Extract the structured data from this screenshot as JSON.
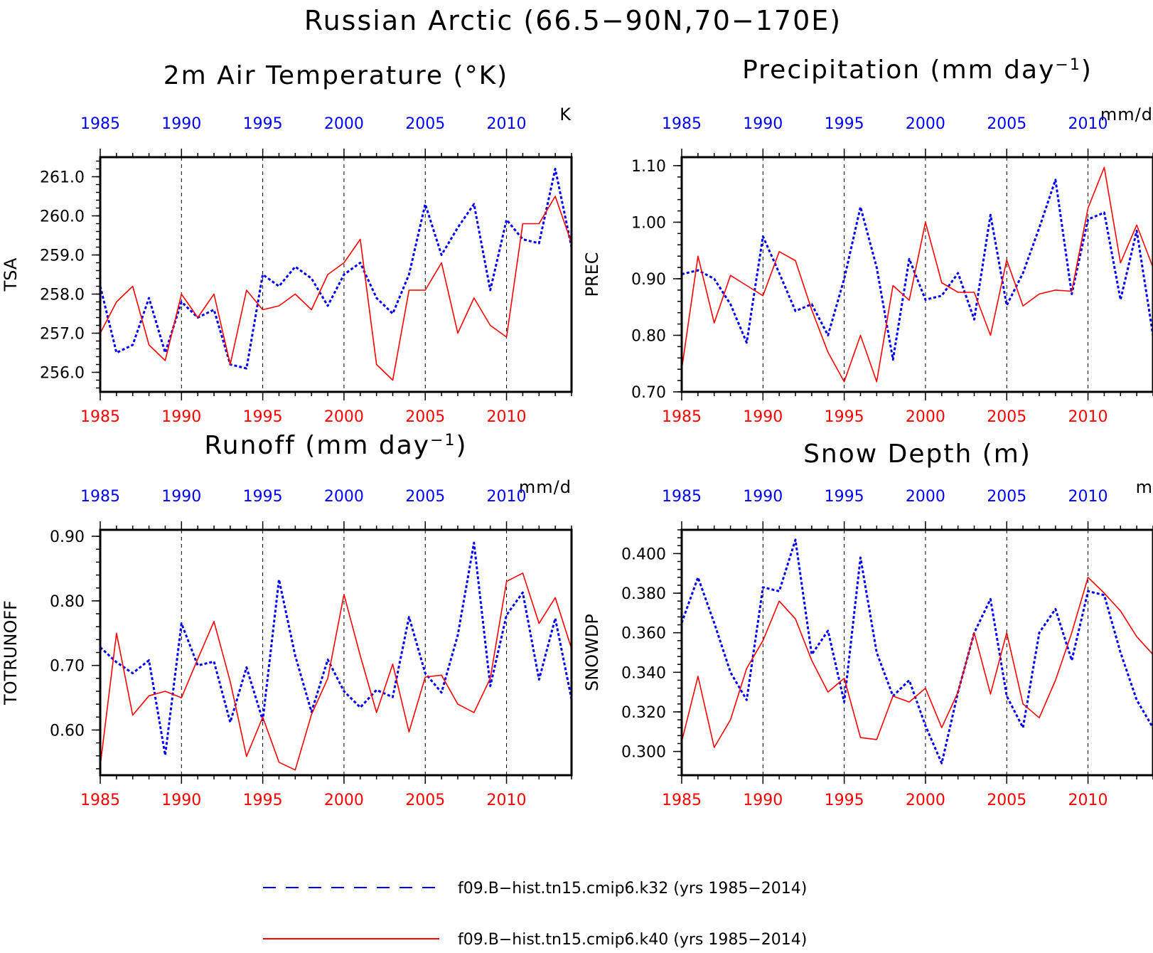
{
  "page": {
    "title": "Russian Arctic (66.5−90N,70−170E)",
    "colors": {
      "k32": "#0000ff",
      "k40": "#ff0000",
      "axis": "#000000"
    }
  },
  "legend": {
    "items": [
      {
        "label": "f09.B−hist.tn15.cmip6.k32 (yrs 1985−2014)",
        "style": "dashed",
        "color": "#0000ff"
      },
      {
        "label": "f09.B−hist.tn15.cmip6.k40 (yrs 1985−2014)",
        "style": "solid",
        "color": "#ff0000"
      }
    ]
  },
  "chart_data": [
    {
      "type": "line",
      "title": "2m Air Temperature (°K)",
      "title_main": "2m Air Temperature (°K)",
      "title_sup": "",
      "title_tail": "",
      "ylabel": "TSA",
      "units": "K",
      "xlim": [
        1985,
        2014
      ],
      "ylim": [
        255.5,
        261.5
      ],
      "yticks": [
        256,
        257,
        258,
        259,
        260,
        261
      ],
      "ytick_labels": [
        "256.0",
        "257.0",
        "258.0",
        "259.0",
        "260.0",
        "261.0"
      ],
      "y_minor": 0.2,
      "xticks": [
        1985,
        1990,
        1995,
        2000,
        2005,
        2010
      ],
      "xtick_labels": [
        "1985",
        "1990",
        "1995",
        "2000",
        "2005",
        "2010"
      ],
      "grid_x": [
        1990,
        1995,
        2000,
        2005,
        2010
      ],
      "x": [
        1985,
        1986,
        1987,
        1988,
        1989,
        1990,
        1991,
        1992,
        1993,
        1994,
        1995,
        1996,
        1997,
        1998,
        1999,
        2000,
        2001,
        2002,
        2003,
        2004,
        2005,
        2006,
        2007,
        2008,
        2009,
        2010,
        2011,
        2012,
        2013,
        2014
      ],
      "series": [
        {
          "name": "f09.B−hist.tn15.cmip6.k32",
          "style": "dashed",
          "color": "#0000ff",
          "values": [
            258.2,
            256.5,
            256.7,
            257.9,
            256.5,
            257.8,
            257.4,
            257.6,
            256.2,
            256.1,
            258.5,
            258.2,
            258.7,
            258.4,
            257.7,
            258.5,
            258.8,
            257.9,
            257.5,
            258.5,
            260.3,
            259.0,
            259.7,
            260.3,
            258.1,
            259.9,
            259.4,
            259.3,
            261.2,
            259.2
          ]
        },
        {
          "name": "f09.B−hist.tn15.cmip6.k40",
          "style": "solid",
          "color": "#ff0000",
          "values": [
            257.0,
            257.8,
            258.2,
            256.7,
            256.3,
            258.0,
            257.4,
            258.0,
            256.2,
            258.1,
            257.6,
            257.7,
            258.0,
            257.6,
            258.5,
            258.8,
            259.4,
            256.2,
            255.8,
            258.1,
            258.1,
            258.8,
            257.0,
            257.9,
            257.2,
            256.9,
            259.8,
            259.8,
            260.5,
            259.3
          ]
        }
      ]
    },
    {
      "type": "line",
      "title": "Precipitation (mm day⁻¹)",
      "title_main": "Precipitation (mm day",
      "title_sup": "−1",
      "title_tail": ")",
      "ylabel": "PREC",
      "units": "mm/d",
      "xlim": [
        1985,
        2014
      ],
      "ylim": [
        0.7,
        1.115
      ],
      "yticks": [
        0.7,
        0.8,
        0.9,
        1.0,
        1.1
      ],
      "ytick_labels": [
        "0.70",
        "0.80",
        "0.90",
        "1.00",
        "1.10"
      ],
      "y_minor": 0.02,
      "xticks": [
        1985,
        1990,
        1995,
        2000,
        2005,
        2010
      ],
      "xtick_labels": [
        "1985",
        "1990",
        "1995",
        "2000",
        "2005",
        "2010"
      ],
      "grid_x": [
        1990,
        1995,
        2000,
        2005,
        2010
      ],
      "x": [
        1985,
        1986,
        1987,
        1988,
        1989,
        1990,
        1991,
        1992,
        1993,
        1994,
        1995,
        1996,
        1997,
        1998,
        1999,
        2000,
        2001,
        2002,
        2003,
        2004,
        2005,
        2006,
        2007,
        2008,
        2009,
        2010,
        2011,
        2012,
        2013,
        2014
      ],
      "series": [
        {
          "name": "f09.B−hist.tn15.cmip6.k32",
          "style": "dashed",
          "color": "#0000ff",
          "values": [
            0.908,
            0.915,
            0.9,
            0.855,
            0.787,
            0.975,
            0.91,
            0.843,
            0.855,
            0.8,
            0.9,
            1.027,
            0.92,
            0.757,
            0.935,
            0.863,
            0.87,
            0.91,
            0.828,
            1.013,
            0.853,
            0.91,
            0.99,
            1.075,
            0.873,
            1.005,
            1.017,
            0.863,
            0.985,
            0.8
          ]
        },
        {
          "name": "f09.B−hist.tn15.cmip6.k40",
          "style": "solid",
          "color": "#ff0000",
          "values": [
            0.74,
            0.94,
            0.822,
            0.906,
            0.888,
            0.87,
            0.948,
            0.932,
            0.845,
            0.77,
            0.718,
            0.8,
            0.718,
            0.888,
            0.862,
            1.0,
            0.893,
            0.876,
            0.876,
            0.8,
            0.933,
            0.852,
            0.873,
            0.88,
            0.878,
            1.025,
            1.097,
            0.928,
            0.995,
            0.92
          ]
        }
      ]
    },
    {
      "type": "line",
      "title": "Runoff (mm day⁻¹)",
      "title_main": "Runoff (mm day",
      "title_sup": "−1",
      "title_tail": ")",
      "ylabel": "TOTRUNOFF",
      "units": "mm/d",
      "xlim": [
        1985,
        2014
      ],
      "ylim": [
        0.53,
        0.91
      ],
      "yticks": [
        0.6,
        0.7,
        0.8,
        0.9
      ],
      "ytick_labels": [
        "0.60",
        "0.70",
        "0.80",
        "0.90"
      ],
      "y_minor": 0.02,
      "xticks": [
        1985,
        1990,
        1995,
        2000,
        2005,
        2010
      ],
      "xtick_labels": [
        "1985",
        "1990",
        "1995",
        "2000",
        "2005",
        "2010"
      ],
      "grid_x": [
        1990,
        1995,
        2000,
        2005,
        2010
      ],
      "x": [
        1985,
        1986,
        1987,
        1988,
        1989,
        1990,
        1991,
        1992,
        1993,
        1994,
        1995,
        1996,
        1997,
        1998,
        1999,
        2000,
        2001,
        2002,
        2003,
        2004,
        2005,
        2006,
        2007,
        2008,
        2009,
        2010,
        2011,
        2012,
        2013,
        2014
      ],
      "series": [
        {
          "name": "f09.B−hist.tn15.cmip6.k32",
          "style": "dashed",
          "color": "#0000ff",
          "values": [
            0.728,
            0.705,
            0.688,
            0.708,
            0.561,
            0.765,
            0.7,
            0.706,
            0.612,
            0.697,
            0.615,
            0.833,
            0.715,
            0.628,
            0.709,
            0.66,
            0.635,
            0.662,
            0.651,
            0.775,
            0.688,
            0.658,
            0.747,
            0.89,
            0.668,
            0.778,
            0.813,
            0.678,
            0.773,
            0.648
          ]
        },
        {
          "name": "f09.B−hist.tn15.cmip6.k40",
          "style": "solid",
          "color": "#ff0000",
          "values": [
            0.545,
            0.75,
            0.623,
            0.653,
            0.66,
            0.65,
            0.71,
            0.768,
            0.675,
            0.559,
            0.62,
            0.55,
            0.538,
            0.624,
            0.68,
            0.81,
            0.715,
            0.627,
            0.702,
            0.597,
            0.682,
            0.685,
            0.64,
            0.627,
            0.68,
            0.83,
            0.843,
            0.765,
            0.805,
            0.726
          ]
        }
      ]
    },
    {
      "type": "line",
      "title": "Snow Depth (m)",
      "title_main": "Snow Depth (m)",
      "title_sup": "",
      "title_tail": "",
      "ylabel": "SNOWDP",
      "units": "m",
      "xlim": [
        1985,
        2014
      ],
      "ylim": [
        0.288,
        0.412
      ],
      "yticks": [
        0.3,
        0.32,
        0.34,
        0.36,
        0.38,
        0.4
      ],
      "ytick_labels": [
        "0.300",
        "0.320",
        "0.340",
        "0.360",
        "0.380",
        "0.400"
      ],
      "y_minor": 0.004,
      "xticks": [
        1985,
        1990,
        1995,
        2000,
        2005,
        2010
      ],
      "xtick_labels": [
        "1985",
        "1990",
        "1995",
        "2000",
        "2005",
        "2010"
      ],
      "grid_x": [
        1990,
        1995,
        2000,
        2005,
        2010
      ],
      "x": [
        1985,
        1986,
        1987,
        1988,
        1989,
        1990,
        1991,
        1992,
        1993,
        1994,
        1995,
        1996,
        1997,
        1998,
        1999,
        2000,
        2001,
        2002,
        2003,
        2004,
        2005,
        2006,
        2007,
        2008,
        2009,
        2010,
        2011,
        2012,
        2013,
        2014
      ],
      "series": [
        {
          "name": "f09.B−hist.tn15.cmip6.k32",
          "style": "dashed",
          "color": "#0000ff",
          "values": [
            0.365,
            0.388,
            0.365,
            0.34,
            0.326,
            0.383,
            0.381,
            0.407,
            0.349,
            0.361,
            0.325,
            0.398,
            0.35,
            0.328,
            0.336,
            0.313,
            0.294,
            0.33,
            0.36,
            0.377,
            0.328,
            0.312,
            0.36,
            0.372,
            0.346,
            0.381,
            0.379,
            0.35,
            0.326,
            0.312
          ]
        },
        {
          "name": "f09.B−hist.tn15.cmip6.k40",
          "style": "solid",
          "color": "#ff0000",
          "values": [
            0.305,
            0.338,
            0.302,
            0.316,
            0.342,
            0.356,
            0.376,
            0.367,
            0.346,
            0.33,
            0.337,
            0.307,
            0.306,
            0.328,
            0.325,
            0.332,
            0.312,
            0.33,
            0.36,
            0.329,
            0.36,
            0.324,
            0.317,
            0.336,
            0.36,
            0.388,
            0.38,
            0.371,
            0.358,
            0.349
          ]
        }
      ]
    }
  ]
}
